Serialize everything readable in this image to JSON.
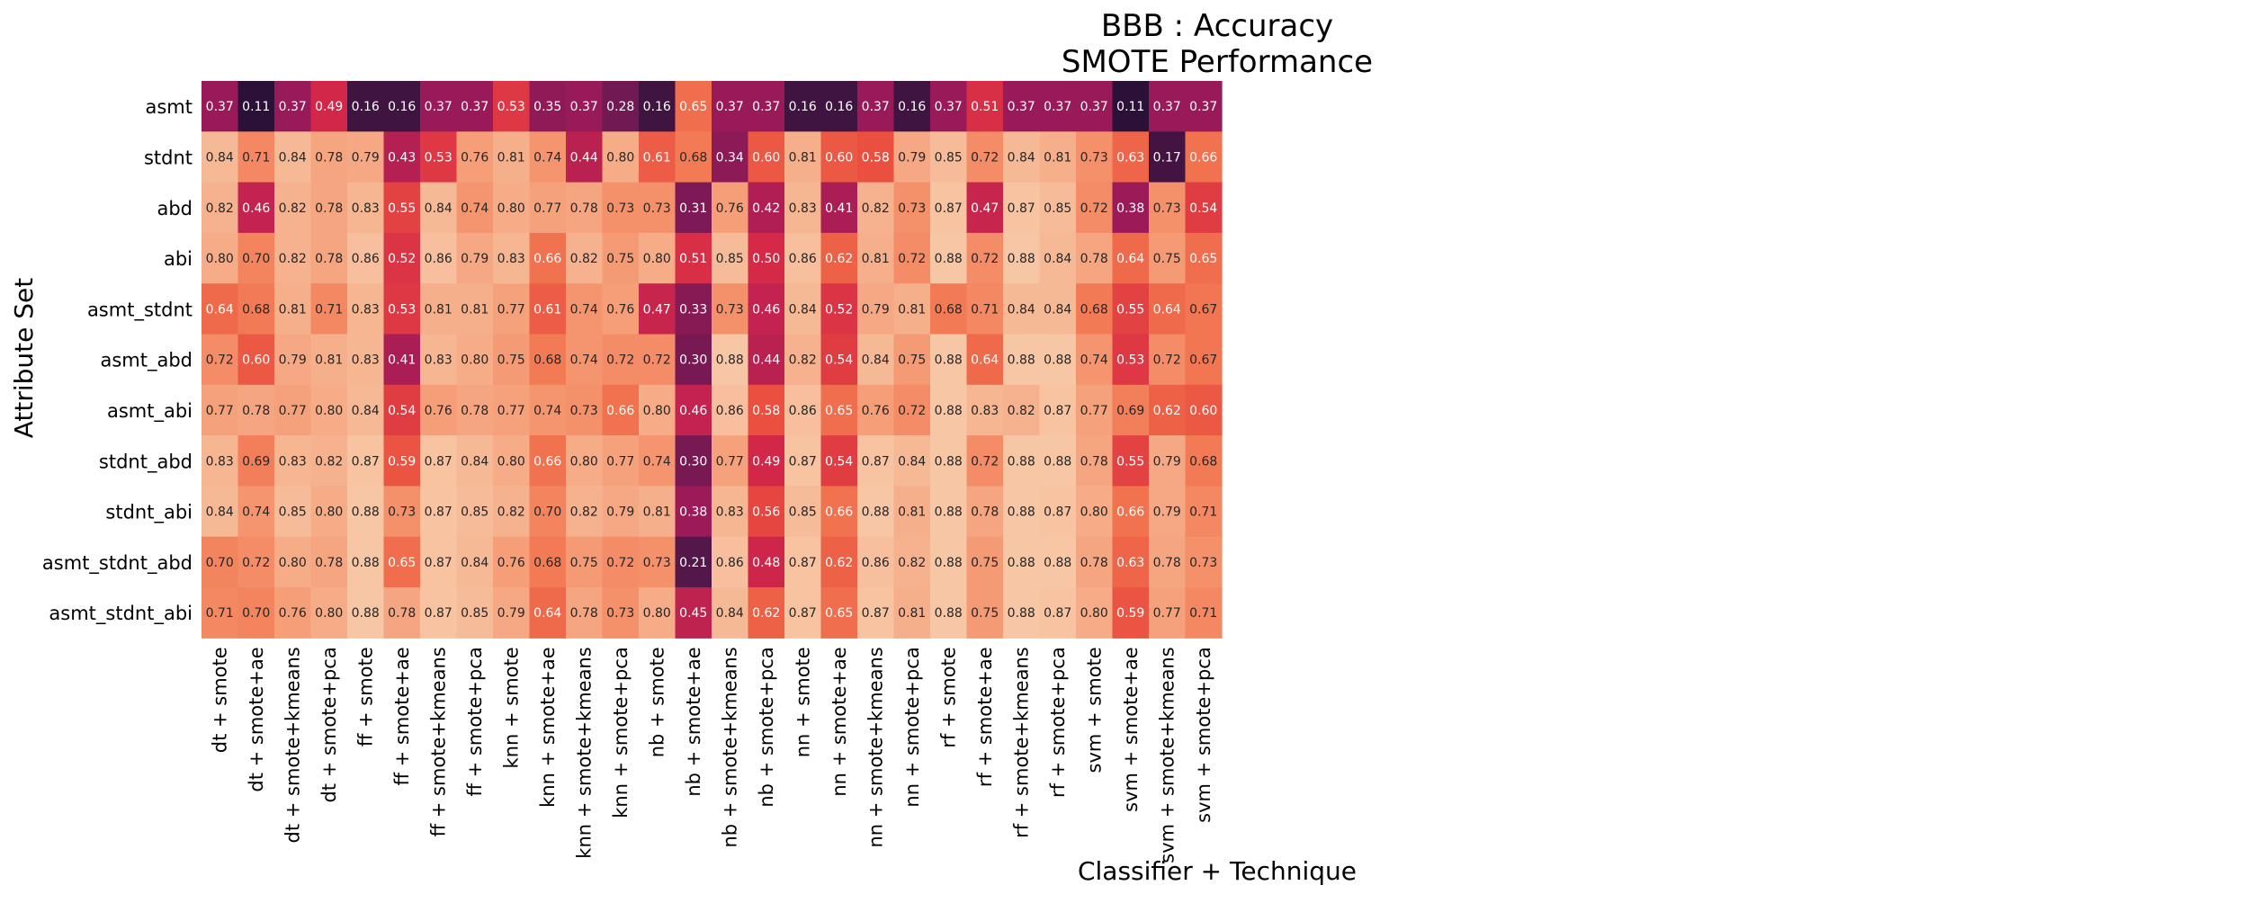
{
  "chart_data": {
    "type": "heatmap",
    "title": "BBB : Accuracy",
    "subtitle": "SMOTE Performance",
    "xlabel": "Classifier + Technique",
    "ylabel": "Attribute Set",
    "colormap": "rocket",
    "colorbar": false,
    "x": [
      "dt + smote",
      "dt + smote+ae",
      "dt + smote+kmeans",
      "dt + smote+pca",
      "ff + smote",
      "ff + smote+ae",
      "ff + smote+kmeans",
      "ff + smote+pca",
      "knn + smote",
      "knn + smote+ae",
      "knn + smote+kmeans",
      "knn + smote+pca",
      "nb + smote",
      "nb + smote+ae",
      "nb + smote+kmeans",
      "nb + smote+pca",
      "nn + smote",
      "nn + smote+ae",
      "nn + smote+kmeans",
      "nn + smote+pca",
      "rf + smote",
      "rf + smote+ae",
      "rf + smote+kmeans",
      "rf + smote+pca",
      "svm + smote",
      "svm + smote+ae",
      "svm + smote+kmeans",
      "svm + smote+pca"
    ],
    "y": [
      "asmt",
      "stdnt",
      "abd",
      "abi",
      "asmt_stdnt",
      "asmt_abd",
      "asmt_abi",
      "stdnt_abd",
      "stdnt_abi",
      "asmt_stdnt_abd",
      "asmt_stdnt_abi"
    ],
    "values": [
      [
        "0.37",
        "0.11",
        "0.37",
        "0.49",
        "0.16",
        "0.16",
        "0.37",
        "0.37",
        "0.53",
        "0.35",
        "0.37",
        "0.28",
        "0.16",
        "0.65",
        "0.37",
        "0.37",
        "0.16",
        "0.16",
        "0.37",
        "0.16",
        "0.37",
        "0.51",
        "0.37",
        "0.37",
        "0.37",
        "0.11",
        "0.37",
        "0.37"
      ],
      [
        "0.84",
        "0.71",
        "0.84",
        "0.78",
        "0.79",
        "0.43",
        "0.53",
        "0.76",
        "0.81",
        "0.74",
        "0.44",
        "0.80",
        "0.61",
        "0.68",
        "0.34",
        "0.60",
        "0.81",
        "0.60",
        "0.58",
        "0.79",
        "0.85",
        "0.72",
        "0.84",
        "0.81",
        "0.73",
        "0.63",
        "0.17",
        "0.66"
      ],
      [
        "0.82",
        "0.46",
        "0.82",
        "0.78",
        "0.83",
        "0.55",
        "0.84",
        "0.74",
        "0.80",
        "0.77",
        "0.78",
        "0.73",
        "0.73",
        "0.31",
        "0.76",
        "0.42",
        "0.83",
        "0.41",
        "0.82",
        "0.73",
        "0.87",
        "0.47",
        "0.87",
        "0.85",
        "0.72",
        "0.38",
        "0.73",
        "0.54"
      ],
      [
        "0.80",
        "0.70",
        "0.82",
        "0.78",
        "0.86",
        "0.52",
        "0.86",
        "0.79",
        "0.83",
        "0.66",
        "0.82",
        "0.75",
        "0.80",
        "0.51",
        "0.85",
        "0.50",
        "0.86",
        "0.62",
        "0.81",
        "0.72",
        "0.88",
        "0.72",
        "0.88",
        "0.84",
        "0.78",
        "0.64",
        "0.75",
        "0.65"
      ],
      [
        "0.64",
        "0.68",
        "0.81",
        "0.71",
        "0.83",
        "0.53",
        "0.81",
        "0.81",
        "0.77",
        "0.61",
        "0.74",
        "0.76",
        "0.47",
        "0.33",
        "0.73",
        "0.46",
        "0.84",
        "0.52",
        "0.79",
        "0.81",
        "0.68",
        "0.71",
        "0.84",
        "0.84",
        "0.68",
        "0.55",
        "0.64",
        "0.67"
      ],
      [
        "0.72",
        "0.60",
        "0.79",
        "0.81",
        "0.83",
        "0.41",
        "0.83",
        "0.80",
        "0.75",
        "0.68",
        "0.74",
        "0.72",
        "0.72",
        "0.30",
        "0.88",
        "0.44",
        "0.82",
        "0.54",
        "0.84",
        "0.75",
        "0.88",
        "0.64",
        "0.88",
        "0.88",
        "0.74",
        "0.53",
        "0.72",
        "0.67"
      ],
      [
        "0.77",
        "0.78",
        "0.77",
        "0.80",
        "0.84",
        "0.54",
        "0.76",
        "0.78",
        "0.77",
        "0.74",
        "0.73",
        "0.66",
        "0.80",
        "0.46",
        "0.86",
        "0.58",
        "0.86",
        "0.65",
        "0.76",
        "0.72",
        "0.88",
        "0.83",
        "0.82",
        "0.87",
        "0.77",
        "0.69",
        "0.62",
        "0.60"
      ],
      [
        "0.83",
        "0.69",
        "0.83",
        "0.82",
        "0.87",
        "0.59",
        "0.87",
        "0.84",
        "0.80",
        "0.66",
        "0.80",
        "0.77",
        "0.74",
        "0.30",
        "0.77",
        "0.49",
        "0.87",
        "0.54",
        "0.87",
        "0.84",
        "0.88",
        "0.72",
        "0.88",
        "0.88",
        "0.78",
        "0.55",
        "0.79",
        "0.68"
      ],
      [
        "0.84",
        "0.74",
        "0.85",
        "0.80",
        "0.88",
        "0.73",
        "0.87",
        "0.85",
        "0.82",
        "0.70",
        "0.82",
        "0.79",
        "0.81",
        "0.38",
        "0.83",
        "0.56",
        "0.85",
        "0.66",
        "0.88",
        "0.81",
        "0.88",
        "0.78",
        "0.88",
        "0.87",
        "0.80",
        "0.66",
        "0.79",
        "0.71"
      ],
      [
        "0.70",
        "0.72",
        "0.80",
        "0.78",
        "0.88",
        "0.65",
        "0.87",
        "0.84",
        "0.76",
        "0.68",
        "0.75",
        "0.72",
        "0.73",
        "0.21",
        "0.86",
        "0.48",
        "0.87",
        "0.62",
        "0.86",
        "0.82",
        "0.88",
        "0.75",
        "0.88",
        "0.88",
        "0.78",
        "0.63",
        "0.78",
        "0.73"
      ],
      [
        "0.71",
        "0.70",
        "0.76",
        "0.80",
        "0.88",
        "0.78",
        "0.87",
        "0.85",
        "0.79",
        "0.64",
        "0.78",
        "0.73",
        "0.80",
        "0.45",
        "0.84",
        "0.62",
        "0.87",
        "0.65",
        "0.87",
        "0.81",
        "0.88",
        "0.75",
        "0.88",
        "0.87",
        "0.80",
        "0.59",
        "0.77",
        "0.71"
      ]
    ]
  }
}
